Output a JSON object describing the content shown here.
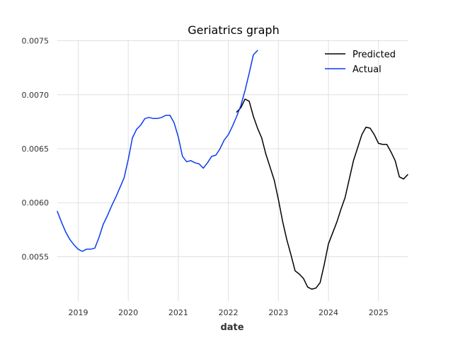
{
  "chart_data": {
    "type": "line",
    "title": "Geriatrics graph",
    "xlabel": "date",
    "ylabel": "",
    "x_ticks": [
      "2019",
      "2020",
      "2021",
      "2022",
      "2023",
      "2024",
      "2025"
    ],
    "y_ticks": [
      "0.0055",
      "0.0060",
      "0.0065",
      "0.0070",
      "0.0075"
    ],
    "y_tick_values": [
      0.0055,
      0.006,
      0.0065,
      0.007,
      0.0075
    ],
    "xlim": [
      "2018-08",
      "2025-08"
    ],
    "ylim": [
      0.00509,
      0.00751
    ],
    "grid": true,
    "legend_position": "top-right",
    "series": [
      {
        "name": "Predicted",
        "color": "#000000",
        "points": [
          [
            "2022-03",
            0.00684
          ],
          [
            "2022-04",
            0.00688
          ],
          [
            "2022-05",
            0.00696
          ],
          [
            "2022-06",
            0.00694
          ],
          [
            "2022-07",
            0.0068
          ],
          [
            "2022-08",
            0.00669
          ],
          [
            "2022-09",
            0.0066
          ],
          [
            "2022-10",
            0.00645
          ],
          [
            "2022-11",
            0.00633
          ],
          [
            "2022-12",
            0.00621
          ],
          [
            "2023-01",
            0.00603
          ],
          [
            "2023-02",
            0.00583
          ],
          [
            "2023-03",
            0.00566
          ],
          [
            "2023-04",
            0.00552
          ],
          [
            "2023-05",
            0.00537
          ],
          [
            "2023-06",
            0.00534
          ],
          [
            "2023-07",
            0.0053
          ],
          [
            "2023-08",
            0.00522
          ],
          [
            "2023-09",
            0.0052
          ],
          [
            "2023-10",
            0.00521
          ],
          [
            "2023-11",
            0.00526
          ],
          [
            "2023-12",
            0.00543
          ],
          [
            "2024-01",
            0.00562
          ],
          [
            "2024-02",
            0.00572
          ],
          [
            "2024-03",
            0.00582
          ],
          [
            "2024-04",
            0.00594
          ],
          [
            "2024-05",
            0.00605
          ],
          [
            "2024-06",
            0.00622
          ],
          [
            "2024-07",
            0.00639
          ],
          [
            "2024-08",
            0.00651
          ],
          [
            "2024-09",
            0.00663
          ],
          [
            "2024-10",
            0.0067
          ],
          [
            "2024-11",
            0.00669
          ],
          [
            "2024-12",
            0.00663
          ],
          [
            "2025-01",
            0.00655
          ],
          [
            "2025-02",
            0.00654
          ],
          [
            "2025-03",
            0.00654
          ],
          [
            "2025-04",
            0.00647
          ],
          [
            "2025-05",
            0.00639
          ],
          [
            "2025-06",
            0.00624
          ],
          [
            "2025-07",
            0.00622
          ],
          [
            "2025-08",
            0.00626
          ]
        ]
      },
      {
        "name": "Actual",
        "color": "#0a3cf0",
        "points": [
          [
            "2018-08",
            0.00592
          ],
          [
            "2018-09",
            0.00582
          ],
          [
            "2018-10",
            0.00573
          ],
          [
            "2018-11",
            0.00566
          ],
          [
            "2018-12",
            0.00561
          ],
          [
            "2019-01",
            0.00557
          ],
          [
            "2019-02",
            0.00555
          ],
          [
            "2019-03",
            0.00557
          ],
          [
            "2019-04",
            0.00557
          ],
          [
            "2019-05",
            0.00558
          ],
          [
            "2019-06",
            0.00568
          ],
          [
            "2019-07",
            0.0058
          ],
          [
            "2019-08",
            0.00588
          ],
          [
            "2019-09",
            0.00597
          ],
          [
            "2019-10",
            0.00605
          ],
          [
            "2019-11",
            0.00614
          ],
          [
            "2019-12",
            0.00623
          ],
          [
            "2020-01",
            0.0064
          ],
          [
            "2020-02",
            0.0066
          ],
          [
            "2020-03",
            0.00668
          ],
          [
            "2020-04",
            0.00672
          ],
          [
            "2020-05",
            0.00678
          ],
          [
            "2020-06",
            0.00679
          ],
          [
            "2020-07",
            0.00678
          ],
          [
            "2020-08",
            0.00678
          ],
          [
            "2020-09",
            0.00679
          ],
          [
            "2020-10",
            0.00681
          ],
          [
            "2020-11",
            0.00681
          ],
          [
            "2020-12",
            0.00674
          ],
          [
            "2021-01",
            0.00661
          ],
          [
            "2021-02",
            0.00643
          ],
          [
            "2021-03",
            0.00638
          ],
          [
            "2021-04",
            0.00639
          ],
          [
            "2021-05",
            0.00637
          ],
          [
            "2021-06",
            0.00636
          ],
          [
            "2021-07",
            0.00632
          ],
          [
            "2021-08",
            0.00637
          ],
          [
            "2021-09",
            0.00643
          ],
          [
            "2021-10",
            0.00644
          ],
          [
            "2021-11",
            0.0065
          ],
          [
            "2021-12",
            0.00658
          ],
          [
            "2022-01",
            0.00663
          ],
          [
            "2022-02",
            0.00671
          ],
          [
            "2022-03",
            0.0068
          ],
          [
            "2022-04",
            0.0069
          ],
          [
            "2022-05",
            0.00704
          ],
          [
            "2022-06",
            0.0072
          ],
          [
            "2022-07",
            0.00737
          ],
          [
            "2022-08",
            0.00741
          ]
        ]
      }
    ]
  }
}
